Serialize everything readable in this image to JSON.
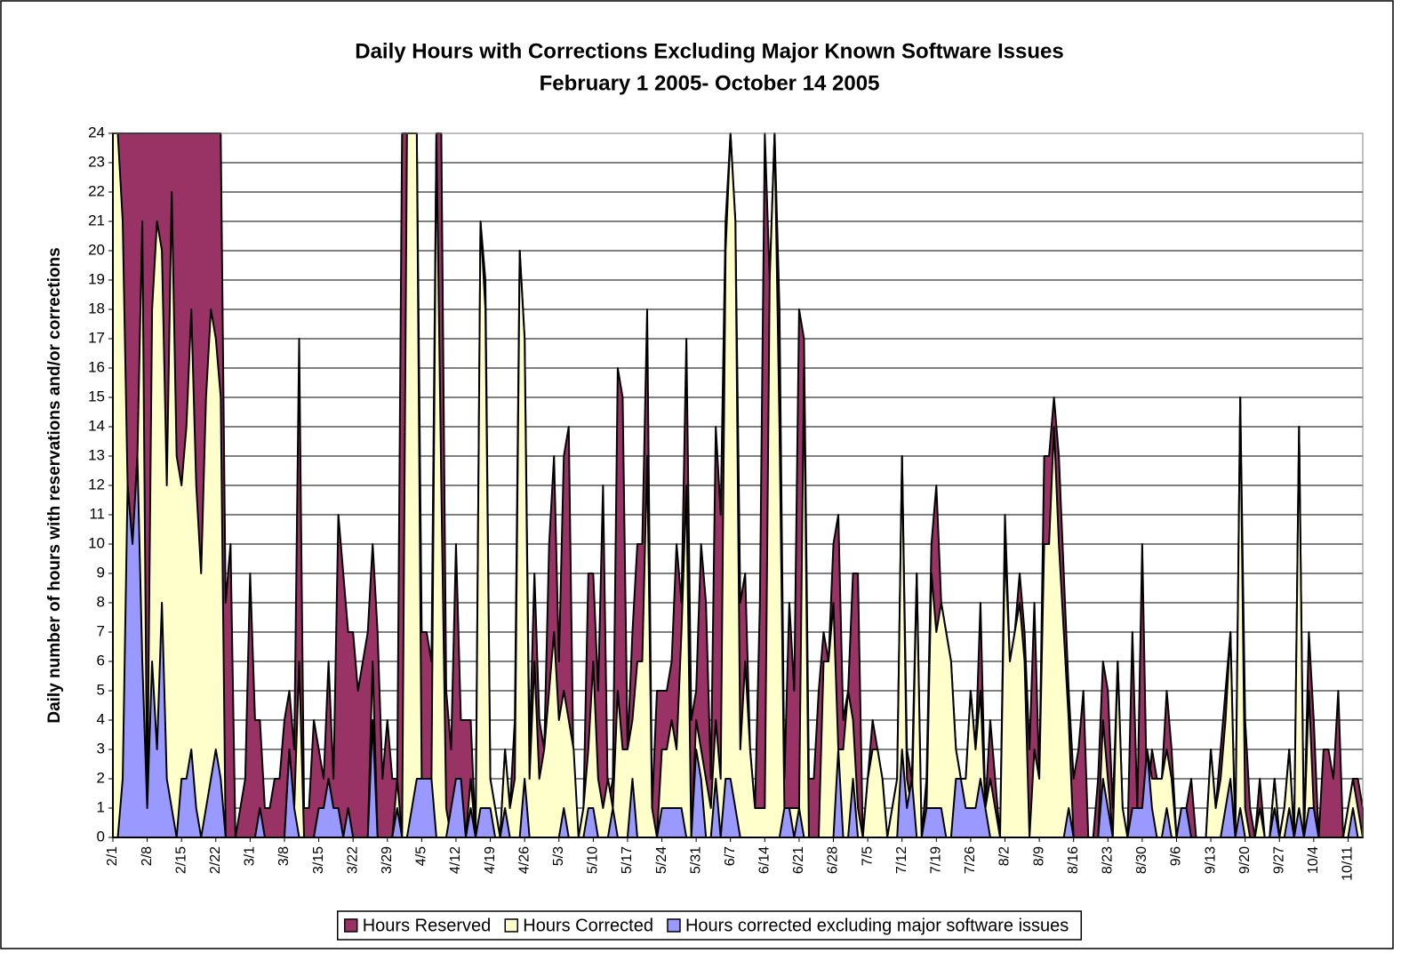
{
  "chart_data": {
    "type": "area",
    "title": "Daily Hours with Corrections Excluding Major Known Software Issues",
    "subtitle": "February 1 2005- October 14 2005",
    "y_label": "Daily number of hours with reservations and/or corrections",
    "categories": [
      "2/1",
      null,
      null,
      null,
      null,
      null,
      null,
      "2/8",
      null,
      null,
      null,
      null,
      null,
      null,
      "2/15",
      null,
      null,
      null,
      null,
      null,
      null,
      "2/22",
      null,
      null,
      null,
      null,
      null,
      null,
      "3/1",
      null,
      null,
      null,
      null,
      null,
      null,
      "3/8",
      null,
      null,
      null,
      null,
      null,
      null,
      "3/15",
      null,
      null,
      null,
      null,
      null,
      null,
      "3/22",
      null,
      null,
      null,
      null,
      null,
      null,
      "3/29",
      null,
      null,
      null,
      null,
      null,
      null,
      "4/5",
      null,
      null,
      null,
      null,
      null,
      null,
      "4/12",
      null,
      null,
      null,
      null,
      null,
      null,
      "4/19",
      null,
      null,
      null,
      null,
      null,
      null,
      "4/26",
      null,
      null,
      null,
      null,
      null,
      null,
      "5/3",
      null,
      null,
      null,
      null,
      null,
      null,
      "5/10",
      null,
      null,
      null,
      null,
      null,
      null,
      "5/17",
      null,
      null,
      null,
      null,
      null,
      null,
      "5/24",
      null,
      null,
      null,
      null,
      null,
      null,
      "5/31",
      null,
      null,
      null,
      null,
      null,
      null,
      "6/7",
      null,
      null,
      null,
      null,
      null,
      null,
      "6/14",
      null,
      null,
      null,
      null,
      null,
      null,
      "6/21",
      null,
      null,
      null,
      null,
      null,
      null,
      "6/28",
      null,
      null,
      null,
      null,
      null,
      null,
      "7/5",
      null,
      null,
      null,
      null,
      null,
      null,
      "7/12",
      null,
      null,
      null,
      null,
      null,
      null,
      "7/19",
      null,
      null,
      null,
      null,
      null,
      null,
      "7/26",
      null,
      null,
      null,
      null,
      null,
      null,
      "8/2",
      null,
      null,
      null,
      null,
      null,
      null,
      "8/9",
      null,
      null,
      null,
      null,
      null,
      null,
      "8/16",
      null,
      null,
      null,
      null,
      null,
      null,
      "8/23",
      null,
      null,
      null,
      null,
      null,
      null,
      "8/30",
      null,
      null,
      null,
      null,
      null,
      null,
      "9/6",
      null,
      null,
      null,
      null,
      null,
      null,
      "9/13",
      null,
      null,
      null,
      null,
      null,
      null,
      "9/20",
      null,
      null,
      null,
      null,
      null,
      null,
      "9/27",
      null,
      null,
      null,
      null,
      null,
      null,
      "10/4",
      null,
      null,
      null,
      null,
      null,
      null,
      "10/11",
      null,
      null,
      null
    ],
    "series": [
      {
        "name": "Hours Reserved",
        "color": "#993366",
        "values": [
          24,
          24,
          24,
          24,
          24,
          24,
          24,
          24,
          24,
          24,
          24,
          24,
          24,
          24,
          24,
          24,
          24,
          24,
          24,
          24,
          24,
          24,
          24,
          8,
          10,
          0,
          1,
          2,
          9,
          4,
          4,
          1,
          1,
          2,
          2,
          4,
          5,
          3,
          17,
          1,
          1,
          4,
          3,
          2,
          6,
          2,
          11,
          9,
          7,
          7,
          5,
          6,
          7,
          10,
          7,
          2,
          4,
          2,
          2,
          24,
          24,
          24,
          24,
          7,
          7,
          6,
          24,
          24,
          5,
          3,
          10,
          4,
          4,
          4,
          0,
          21,
          19,
          2,
          1,
          0,
          3,
          1,
          4,
          20,
          17,
          3,
          9,
          4,
          3,
          10,
          13,
          6,
          13,
          14,
          2,
          0,
          1,
          9,
          9,
          5,
          12,
          1,
          2,
          16,
          15,
          3,
          7,
          10,
          10,
          18,
          1,
          5,
          5,
          5,
          6,
          10,
          8,
          17,
          4,
          5,
          10,
          8,
          2,
          14,
          11,
          21,
          24,
          21,
          8,
          9,
          3,
          1,
          8,
          24,
          19,
          24,
          18,
          2,
          8,
          5,
          18,
          17,
          2,
          2,
          5,
          7,
          6,
          10,
          11,
          4,
          5,
          9,
          9,
          0,
          2,
          4,
          3,
          2,
          0,
          1,
          2,
          13,
          3,
          2,
          9,
          0,
          2,
          10,
          12,
          8,
          7,
          6,
          3,
          2,
          2,
          5,
          3,
          8,
          1,
          4,
          2,
          0,
          11,
          6,
          7,
          9,
          7,
          3,
          8,
          2,
          13,
          13,
          15,
          13,
          9,
          5,
          2,
          3,
          5,
          0,
          0,
          2,
          6,
          5,
          1,
          6,
          1,
          0,
          7,
          1,
          10,
          1,
          3,
          2,
          2,
          5,
          3,
          0,
          1,
          1,
          2,
          0,
          0,
          0,
          3,
          1,
          3,
          5,
          7,
          0,
          15,
          4,
          1,
          0,
          2,
          0,
          0,
          2,
          0,
          1,
          3,
          0,
          14,
          0,
          7,
          4,
          0,
          3,
          3,
          2,
          5,
          0,
          1,
          2,
          2,
          1
        ]
      },
      {
        "name": "Hours Corrected",
        "color": "#ffffcc",
        "values": [
          24,
          24,
          21,
          12,
          10,
          13,
          21,
          1,
          18,
          21,
          20,
          12,
          22,
          13,
          12,
          14,
          18,
          12,
          9,
          15,
          18,
          17,
          15,
          0,
          0,
          0,
          0,
          0,
          0,
          0,
          1,
          0,
          0,
          0,
          0,
          0,
          3,
          1,
          6,
          0,
          0,
          0,
          1,
          1,
          2,
          1,
          1,
          0,
          1,
          0,
          0,
          0,
          0,
          6,
          0,
          0,
          0,
          0,
          2,
          0,
          24,
          24,
          24,
          2,
          2,
          2,
          24,
          12,
          1,
          0,
          2,
          2,
          0,
          2,
          0,
          21,
          18,
          2,
          1,
          0,
          3,
          1,
          2,
          20,
          17,
          2,
          6,
          2,
          3,
          5,
          7,
          4,
          5,
          4,
          3,
          0,
          1,
          3,
          6,
          2,
          1,
          2,
          1,
          5,
          3,
          3,
          4,
          6,
          6,
          13,
          1,
          0,
          3,
          3,
          4,
          3,
          7,
          12,
          0,
          4,
          3,
          2,
          1,
          4,
          2,
          20,
          24,
          21,
          3,
          6,
          3,
          1,
          1,
          1,
          19,
          24,
          14,
          1,
          1,
          1,
          1,
          16,
          0,
          0,
          0,
          6,
          6,
          8,
          3,
          3,
          5,
          4,
          1,
          0,
          2,
          3,
          3,
          2,
          0,
          1,
          2,
          13,
          2,
          1,
          9,
          0,
          1,
          9,
          7,
          8,
          7,
          6,
          3,
          2,
          2,
          5,
          3,
          5,
          1,
          2,
          1,
          0,
          10,
          6,
          7,
          8,
          6,
          0,
          3,
          2,
          10,
          10,
          14,
          10,
          7,
          4,
          0,
          0,
          0,
          0,
          0,
          0,
          4,
          2,
          0,
          6,
          1,
          0,
          1,
          1,
          1,
          3,
          2,
          2,
          2,
          3,
          2,
          0,
          1,
          1,
          0,
          0,
          0,
          0,
          3,
          1,
          2,
          4,
          7,
          0,
          15,
          1,
          0,
          0,
          1,
          0,
          0,
          2,
          0,
          1,
          3,
          0,
          14,
          0,
          5,
          1,
          0,
          0,
          0,
          0,
          0,
          0,
          1,
          2,
          1,
          0
        ]
      },
      {
        "name": "Hours corrected excluding major software issues",
        "color": "#9999ff",
        "values": [
          0,
          0,
          2,
          12,
          10,
          13,
          6,
          1,
          6,
          3,
          8,
          2,
          1,
          0,
          2,
          2,
          3,
          1,
          0,
          1,
          2,
          3,
          2,
          0,
          0,
          0,
          0,
          0,
          0,
          0,
          1,
          0,
          0,
          0,
          0,
          0,
          3,
          1,
          0,
          0,
          0,
          0,
          1,
          1,
          2,
          1,
          1,
          0,
          1,
          0,
          0,
          0,
          0,
          4,
          0,
          0,
          0,
          0,
          1,
          0,
          0,
          1,
          2,
          2,
          2,
          2,
          0,
          0,
          0,
          1,
          2,
          2,
          0,
          1,
          0,
          1,
          1,
          1,
          0,
          0,
          1,
          0,
          0,
          0,
          2,
          0,
          0,
          0,
          0,
          0,
          0,
          0,
          1,
          0,
          0,
          0,
          0,
          1,
          1,
          0,
          0,
          0,
          1,
          0,
          0,
          0,
          2,
          0,
          0,
          0,
          0,
          0,
          1,
          1,
          1,
          1,
          1,
          0,
          0,
          3,
          2,
          0,
          0,
          2,
          0,
          2,
          2,
          1,
          0,
          0,
          0,
          0,
          0,
          0,
          0,
          0,
          0,
          1,
          1,
          0,
          1,
          0,
          0,
          0,
          0,
          0,
          0,
          0,
          3,
          0,
          0,
          2,
          0,
          0,
          0,
          0,
          0,
          0,
          0,
          0,
          0,
          3,
          1,
          2,
          0,
          0,
          1,
          1,
          1,
          1,
          0,
          0,
          2,
          2,
          1,
          1,
          1,
          2,
          1,
          0,
          0,
          0,
          0,
          0,
          0,
          0,
          0,
          0,
          0,
          0,
          0,
          0,
          0,
          0,
          0,
          1,
          0,
          0,
          0,
          0,
          0,
          0,
          2,
          1,
          0,
          0,
          0,
          0,
          1,
          1,
          1,
          3,
          1,
          0,
          0,
          1,
          0,
          0,
          1,
          1,
          0,
          0,
          0,
          0,
          0,
          0,
          0,
          1,
          2,
          0,
          1,
          0,
          0,
          0,
          0,
          0,
          0,
          1,
          0,
          0,
          1,
          0,
          1,
          0,
          1,
          1,
          0,
          0,
          0,
          0,
          0,
          0,
          0,
          1,
          0,
          0
        ]
      }
    ],
    "ylim": [
      0,
      24
    ],
    "yticks": [
      0,
      1,
      2,
      3,
      4,
      5,
      6,
      7,
      8,
      9,
      10,
      11,
      12,
      13,
      14,
      15,
      16,
      17,
      18,
      19,
      20,
      21,
      22,
      23,
      24
    ],
    "grid": true,
    "legend": "bottom"
  }
}
